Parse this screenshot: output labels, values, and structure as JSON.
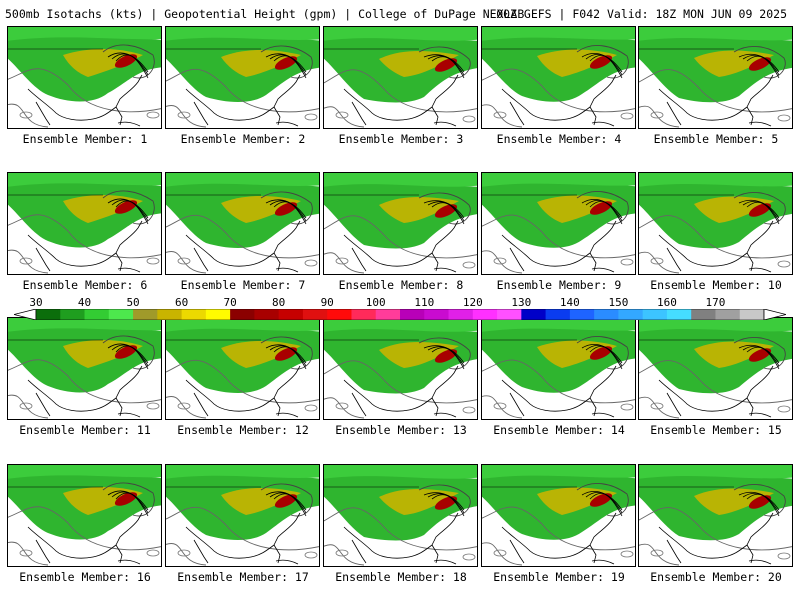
{
  "header": {
    "left": "500mb Isotachs (kts) | Geopotential Height (gpm) | College of DuPage NEXLAB",
    "right": "00Z GEFS | F042 Valid: 18Z MON JUN 09 2025"
  },
  "member_label_prefix": "Ensemble Member:",
  "members": [
    "1",
    "2",
    "3",
    "4",
    "5",
    "6",
    "7",
    "8",
    "9",
    "10",
    "11",
    "12",
    "13",
    "14",
    "15",
    "16",
    "17",
    "18",
    "19",
    "20"
  ],
  "colorbar": {
    "ticks": [
      "30",
      "40",
      "50",
      "60",
      "70",
      "80",
      "90",
      "100",
      "110",
      "120",
      "130",
      "140",
      "150",
      "160",
      "170"
    ],
    "colors": [
      "#0b6e0b",
      "#1f9e1f",
      "#33cc33",
      "#4de84d",
      "#a09a2a",
      "#c9b400",
      "#ecd900",
      "#fffb00",
      "#8b0000",
      "#a80000",
      "#c60000",
      "#e01010",
      "#ff0a0a",
      "#ff2a5a",
      "#ff3c9a",
      "#b800b8",
      "#c90bd0",
      "#e020e8",
      "#ff30ff",
      "#ff50ff",
      "#0000c8",
      "#0a3cf0",
      "#1e64ff",
      "#2a8cff",
      "#33a8ff",
      "#3cc4ff",
      "#45ddff",
      "#808080",
      "#a0a0a0",
      "#c8c8c8"
    ]
  }
}
